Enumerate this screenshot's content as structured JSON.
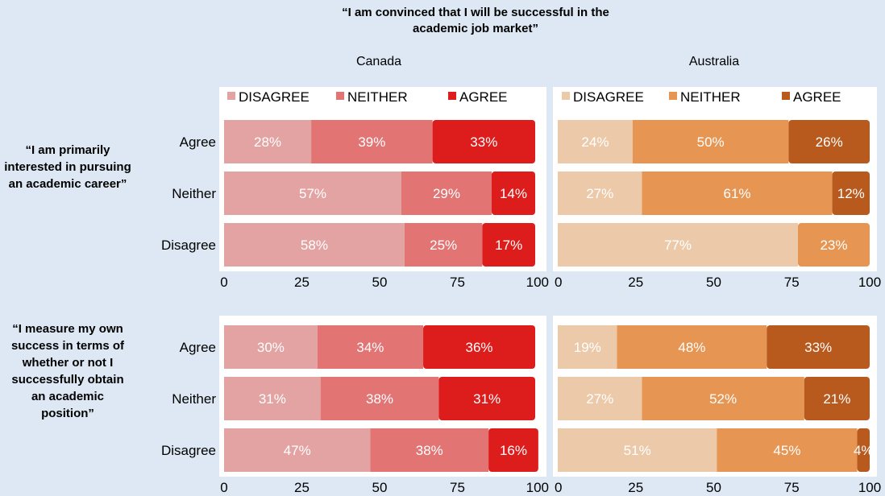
{
  "main_title": "“I am convinced that I will be successful in the academic job market”",
  "region_titles": {
    "canada": "Canada",
    "australia": "Australia"
  },
  "row_titles": {
    "career": "“I am primarily interested in pursuing an academic career”",
    "success": "“I measure my own success in terms of whether or not I successfully obtain an academic position”"
  },
  "legend_labels": [
    "DISAGREE",
    "NEITHER",
    "AGREE"
  ],
  "colors": {
    "canada": [
      "#e3a3a3",
      "#e27474",
      "#dd1c1c"
    ],
    "australia": [
      "#eccaa9",
      "#e69552",
      "#b85a1e"
    ],
    "background": "#dde8f4",
    "plot_background": "#ffffff"
  },
  "chart_data": [
    {
      "type": "bar",
      "orientation": "horizontal",
      "stacked": true,
      "panel": "career",
      "region": "Canada",
      "categories": [
        "Agree",
        "Neither",
        "Disagree"
      ],
      "series": [
        {
          "name": "DISAGREE",
          "values": [
            28,
            57,
            58
          ]
        },
        {
          "name": "NEITHER",
          "values": [
            39,
            29,
            25
          ]
        },
        {
          "name": "AGREE",
          "values": [
            33,
            14,
            17
          ]
        }
      ],
      "xlim": [
        0,
        100
      ],
      "xticks": [
        0,
        25,
        50,
        75,
        100
      ],
      "legend_position": "top"
    },
    {
      "type": "bar",
      "orientation": "horizontal",
      "stacked": true,
      "panel": "career",
      "region": "Australia",
      "categories": [
        "Agree",
        "Neither",
        "Disagree"
      ],
      "series": [
        {
          "name": "DISAGREE",
          "values": [
            24,
            27,
            77
          ]
        },
        {
          "name": "NEITHER",
          "values": [
            50,
            61,
            23
          ]
        },
        {
          "name": "AGREE",
          "values": [
            26,
            12,
            0
          ]
        }
      ],
      "xlim": [
        0,
        100
      ],
      "xticks": [
        0,
        25,
        50,
        75,
        100
      ],
      "legend_position": "top"
    },
    {
      "type": "bar",
      "orientation": "horizontal",
      "stacked": true,
      "panel": "success",
      "region": "Canada",
      "categories": [
        "Agree",
        "Neither",
        "Disagree"
      ],
      "series": [
        {
          "name": "DISAGREE",
          "values": [
            30,
            31,
            47
          ]
        },
        {
          "name": "NEITHER",
          "values": [
            34,
            38,
            38
          ]
        },
        {
          "name": "AGREE",
          "values": [
            36,
            31,
            16
          ]
        }
      ],
      "xlim": [
        0,
        100
      ],
      "xticks": [
        0,
        25,
        50,
        75,
        100
      ]
    },
    {
      "type": "bar",
      "orientation": "horizontal",
      "stacked": true,
      "panel": "success",
      "region": "Australia",
      "categories": [
        "Agree",
        "Neither",
        "Disagree"
      ],
      "series": [
        {
          "name": "DISAGREE",
          "values": [
            19,
            27,
            51
          ]
        },
        {
          "name": "NEITHER",
          "values": [
            48,
            52,
            45
          ]
        },
        {
          "name": "AGREE",
          "values": [
            33,
            21,
            4
          ]
        }
      ],
      "xlim": [
        0,
        100
      ],
      "xticks": [
        0,
        25,
        50,
        75,
        100
      ]
    }
  ]
}
